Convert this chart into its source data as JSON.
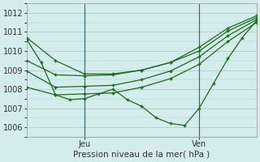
{
  "xlabel": "Pression niveau de la mer( hPa )",
  "ylim": [
    1005.5,
    1012.5
  ],
  "xlim": [
    0,
    48
  ],
  "yticks": [
    1006,
    1007,
    1008,
    1009,
    1010,
    1011,
    1012
  ],
  "background_color": "#d4ecec",
  "grid_color": "#b0cccc",
  "line_color": "#1a6b1a",
  "marker_color": "#1a6b1a",
  "jeu_x": 12,
  "ven_x": 36,
  "series": [
    [
      0,
      1010.7,
      6,
      1009.5,
      12,
      1008.8,
      18,
      1008.8,
      24,
      1009.0,
      30,
      1009.4,
      36,
      1010.2,
      42,
      1011.2,
      48,
      1011.85
    ],
    [
      0,
      1009.5,
      6,
      1008.75,
      12,
      1008.7,
      18,
      1008.75,
      24,
      1009.0,
      30,
      1009.4,
      36,
      1010.0,
      42,
      1011.05,
      48,
      1011.75
    ],
    [
      0,
      1008.95,
      6,
      1008.1,
      12,
      1008.15,
      18,
      1008.2,
      24,
      1008.5,
      30,
      1008.95,
      36,
      1009.7,
      42,
      1010.8,
      48,
      1011.65
    ],
    [
      0,
      1008.1,
      6,
      1007.7,
      12,
      1007.75,
      18,
      1007.8,
      24,
      1008.1,
      30,
      1008.55,
      36,
      1009.3,
      42,
      1010.5,
      48,
      1011.5
    ],
    [
      0,
      1010.6,
      3,
      1009.4,
      6,
      1007.7,
      9,
      1007.45,
      12,
      1007.5,
      15,
      1007.75,
      18,
      1008.0,
      21,
      1007.45,
      24,
      1007.1,
      27,
      1006.5,
      30,
      1006.2,
      33,
      1006.1,
      36,
      1007.0,
      39,
      1008.3,
      42,
      1009.6,
      45,
      1010.7,
      48,
      1011.6
    ]
  ]
}
